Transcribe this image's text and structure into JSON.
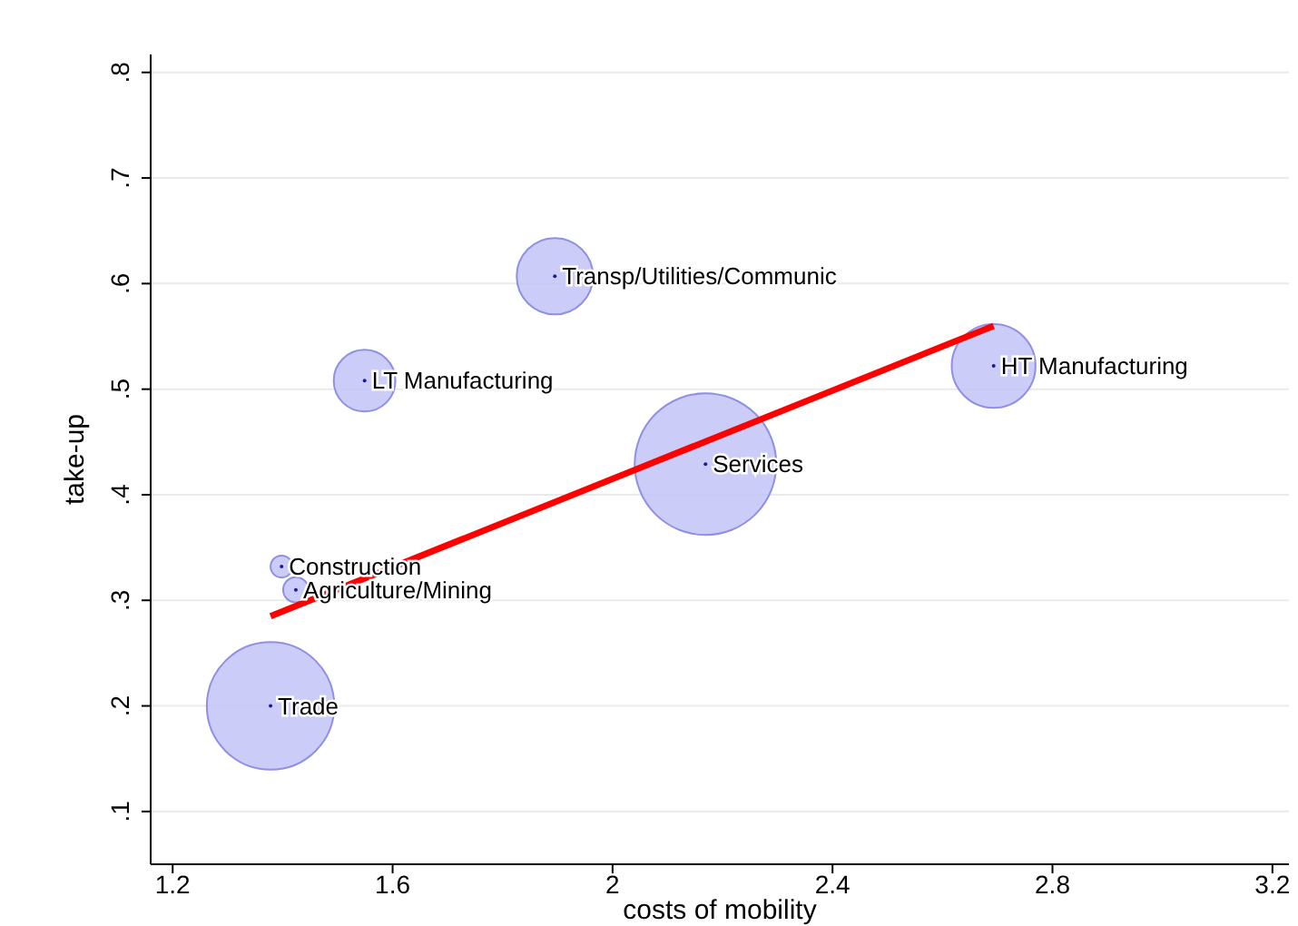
{
  "chart_data": {
    "type": "bubble",
    "xlabel": "costs of mobility",
    "ylabel": "take-up",
    "xlim": [
      1.16,
      3.23
    ],
    "xticks": [
      1.2,
      1.6,
      2,
      2.4,
      2.8,
      3.2
    ],
    "ylim": [
      0.05,
      0.817
    ],
    "yticks": [
      {
        "value": 0.1,
        "label": ".1"
      },
      {
        "value": 0.2,
        "label": ".2"
      },
      {
        "value": 0.3,
        "label": ".3"
      },
      {
        "value": 0.4,
        "label": ".4"
      },
      {
        "value": 0.5,
        "label": ".5"
      },
      {
        "value": 0.6,
        "label": ".6"
      },
      {
        "value": 0.7,
        "label": ".7"
      },
      {
        "value": 0.8,
        "label": ".8"
      }
    ],
    "grid": "y",
    "series": [
      {
        "color": "#c3c3f7",
        "x": [
          1.378,
          1.398,
          1.424,
          1.549,
          1.895,
          2.169,
          2.693
        ],
        "values": [
          0.2,
          0.332,
          0.31,
          0.508,
          0.607,
          0.429,
          0.522
        ],
        "sizes": [
          0.81,
          0.024,
          0.032,
          0.19,
          0.29,
          1,
          0.35
        ]
      },
      {
        "type": "line",
        "color": "#ff0000",
        "x": [
          1.378,
          2.693
        ],
        "values": [
          0.285,
          0.56
        ]
      }
    ],
    "annotations": [
      {
        "text": "Trade",
        "x": 1.378,
        "y": 0.2
      },
      {
        "text": "Construction",
        "x": 1.398,
        "y": 0.332
      },
      {
        "text": "Agriculture/Mining",
        "x": 1.424,
        "y": 0.31
      },
      {
        "text": "LT Manufacturing",
        "x": 1.549,
        "y": 0.508
      },
      {
        "text": "Transp/Utilities/Communic",
        "x": 1.895,
        "y": 0.607
      },
      {
        "text": "Services",
        "x": 2.169,
        "y": 0.429
      },
      {
        "text": "HT Manufacturing",
        "x": 2.693,
        "y": 0.522
      }
    ]
  }
}
